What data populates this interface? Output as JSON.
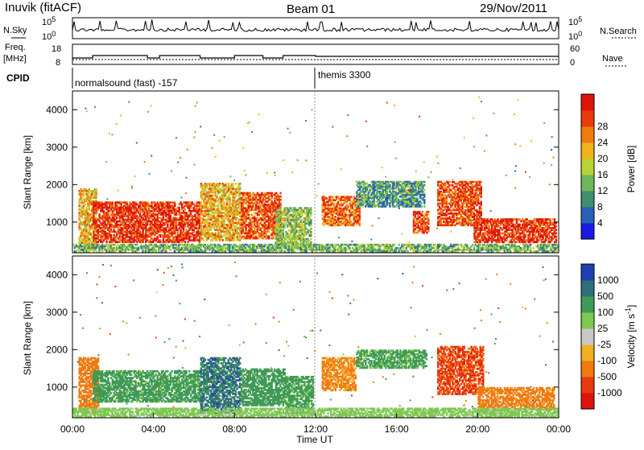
{
  "header": {
    "station": "Inuvik (fitACF)",
    "beam": "Beam 01",
    "date": "29/Nov/2011"
  },
  "status_panel": {
    "nsky_label": "N.Sky",
    "nsearch_label": "N.Search",
    "left_ticks": [
      "10^5",
      "10^0"
    ],
    "right_ticks": [
      "10^5",
      "10^0"
    ]
  },
  "freq_panel": {
    "label_line1": "Freq.",
    "label_line2": "[MHz]",
    "left_ticks": [
      "18",
      "8"
    ],
    "right_ticks": [
      "60",
      "0"
    ],
    "nave_label": "Nave"
  },
  "cpid": {
    "label": "CPID",
    "modes": [
      {
        "name": "normalsound (fast) -157",
        "start_hour": 0
      },
      {
        "name": "themis 3300",
        "start_hour": 12
      }
    ]
  },
  "chart_data": [
    {
      "type": "heatmap",
      "panel": "power",
      "ylabel": "Slant Range [km]",
      "xlabel": "Time UT",
      "xlim": [
        0,
        24
      ],
      "ylim": [
        180,
        4500
      ],
      "y_ticks": [
        "1000",
        "2000",
        "3000",
        "4000"
      ],
      "x_ticks": [
        "00:00",
        "04:00",
        "08:00",
        "12:00",
        "16:00",
        "20:00",
        "00:00"
      ],
      "colorbar": {
        "label": "Power [dB]",
        "ticks": [
          "4",
          "8",
          "12",
          "16",
          "20",
          "24",
          "28"
        ],
        "colors": [
          "#1a1ae6",
          "#2a5fb8",
          "#3f8f6e",
          "#6cb85a",
          "#b7d434",
          "#f2b21c",
          "#f07a10",
          "#e83a0c",
          "#e0120c"
        ]
      },
      "regions": [
        {
          "t0": 0.3,
          "t1": 1.2,
          "r0": 250,
          "r1": 1900,
          "power": 20
        },
        {
          "t0": 1.0,
          "t1": 6.3,
          "r0": 450,
          "r1": 1550,
          "power": 28
        },
        {
          "t0": 6.3,
          "t1": 8.3,
          "r0": 500,
          "r1": 2050,
          "power": 20
        },
        {
          "t0": 8.3,
          "t1": 10.3,
          "r0": 550,
          "r1": 1800,
          "power": 26
        },
        {
          "t0": 10.0,
          "t1": 11.8,
          "r0": 300,
          "r1": 1400,
          "power": 14
        },
        {
          "t0": 12.3,
          "t1": 14.2,
          "r0": 900,
          "r1": 1700,
          "power": 24
        },
        {
          "t0": 14.0,
          "t1": 17.4,
          "r0": 1400,
          "r1": 2100,
          "power": 10
        },
        {
          "t0": 16.8,
          "t1": 17.6,
          "r0": 700,
          "r1": 1300,
          "power": 26
        },
        {
          "t0": 18.0,
          "t1": 20.2,
          "r0": 900,
          "r1": 2100,
          "power": 26
        },
        {
          "t0": 19.8,
          "t1": 23.9,
          "r0": 450,
          "r1": 1100,
          "power": 28
        },
        {
          "t0": 0.0,
          "t1": 24.0,
          "r0": 200,
          "r1": 420,
          "power": 12
        }
      ]
    },
    {
      "type": "heatmap",
      "panel": "velocity",
      "ylabel": "Slant Range [km]",
      "xlabel": "Time UT",
      "xlim": [
        0,
        24
      ],
      "ylim": [
        180,
        4500
      ],
      "y_ticks": [
        "1000",
        "2000",
        "3000",
        "4000"
      ],
      "x_ticks": [
        "00:00",
        "04:00",
        "08:00",
        "12:00",
        "16:00",
        "20:00",
        "00:00"
      ],
      "colorbar": {
        "label": "Velocity [m s^-1]",
        "ticks": [
          "1000",
          "500",
          "100",
          "25",
          "-25",
          "-100",
          "-500",
          "-1000"
        ],
        "colors": [
          "#1f3fb0",
          "#2f6f78",
          "#3f9a55",
          "#7ec850",
          "#c8c8c8",
          "#f0b020",
          "#f07a10",
          "#e83a0c",
          "#e0120c"
        ]
      },
      "regions": [
        {
          "t0": 0.3,
          "t1": 1.3,
          "r0": 300,
          "r1": 1800,
          "velocity": -300
        },
        {
          "t0": 1.0,
          "t1": 6.3,
          "r0": 600,
          "r1": 1450,
          "velocity": 200
        },
        {
          "t0": 6.3,
          "t1": 8.3,
          "r0": 300,
          "r1": 1800,
          "velocity": 700
        },
        {
          "t0": 8.3,
          "t1": 10.5,
          "r0": 500,
          "r1": 1500,
          "velocity": 300
        },
        {
          "t0": 10.5,
          "t1": 11.9,
          "r0": 300,
          "r1": 1300,
          "velocity": 200
        },
        {
          "t0": 12.3,
          "t1": 14.0,
          "r0": 900,
          "r1": 1800,
          "velocity": -150
        },
        {
          "t0": 14.0,
          "t1": 17.5,
          "r0": 1500,
          "r1": 2000,
          "velocity": 150
        },
        {
          "t0": 18.0,
          "t1": 20.3,
          "r0": 800,
          "r1": 2100,
          "velocity": -700
        },
        {
          "t0": 20.0,
          "t1": 23.8,
          "r0": 400,
          "r1": 1000,
          "velocity": -200
        },
        {
          "t0": 0.0,
          "t1": 24.0,
          "r0": 200,
          "r1": 450,
          "velocity": 50
        }
      ]
    }
  ]
}
